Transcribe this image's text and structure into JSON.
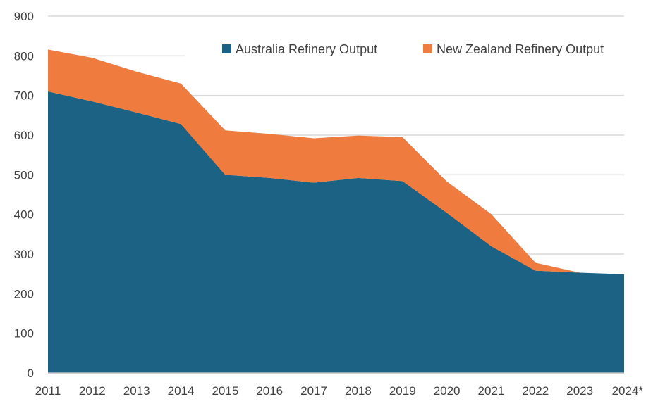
{
  "chart_data": {
    "type": "area",
    "stacked": true,
    "title": "",
    "xlabel": "",
    "ylabel": "",
    "categories": [
      "2011",
      "2012",
      "2013",
      "2014",
      "2015",
      "2016",
      "2017",
      "2018",
      "2019",
      "2020",
      "2021",
      "2022",
      "2023",
      "2024*"
    ],
    "ylim": [
      0,
      900
    ],
    "yticks": [
      0,
      100,
      200,
      300,
      400,
      500,
      600,
      700,
      800,
      900
    ],
    "grid": true,
    "legend_position": "top-right",
    "series": [
      {
        "name": "Australia Refinery Output",
        "color": "#1c6284",
        "values": [
          710,
          685,
          657,
          628,
          500,
          492,
          480,
          492,
          484,
          404,
          320,
          258,
          253,
          249
        ]
      },
      {
        "name": "New Zealand Refinery Output",
        "color": "#ef7b3e",
        "values": [
          106,
          110,
          103,
          102,
          112,
          111,
          112,
          107,
          111,
          79,
          81,
          20,
          0,
          0
        ]
      }
    ]
  }
}
